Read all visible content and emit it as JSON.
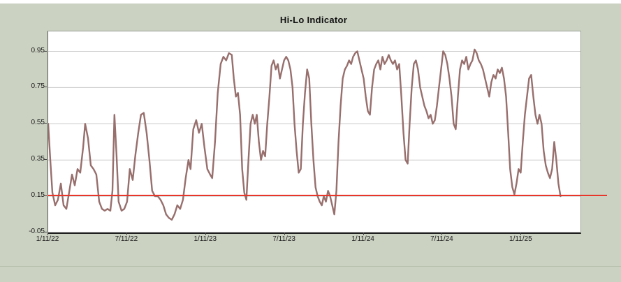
{
  "window": {
    "background_color": "#cbd2c2",
    "plot_background_color": "#ffffff"
  },
  "chart_data": {
    "type": "line",
    "title": "Hi-Lo Indicator",
    "xlabel": "",
    "ylabel": "",
    "legend": "none",
    "grid": "horizontal",
    "ylim": [
      -0.05,
      1.06
    ],
    "y_ticks": [
      0.95,
      0.75,
      0.55,
      0.35,
      0.15,
      -0.05
    ],
    "y_tick_labels": [
      "0.95",
      "0.75",
      "0.55",
      "0.35",
      "0.15",
      "-0.05"
    ],
    "x_tick_labels": [
      "1/11/22",
      "7/11/22",
      "1/11/23",
      "7/11/23",
      "1/11/24",
      "7/11/24",
      "1/11/25"
    ],
    "x_tick_months": [
      0,
      6,
      12,
      18,
      24,
      30,
      36
    ],
    "xlim_months": [
      0,
      40.5
    ],
    "colors": {
      "line": "#976f6d",
      "reference": "#e8362a",
      "grid": "#c9c9c9",
      "text": "#1a1a1a"
    },
    "reference_line": {
      "value": 0.15,
      "color": "#e8362a"
    },
    "series": [
      {
        "name": "Hi-Lo Indicator",
        "color": "#976f6d",
        "points": [
          [
            0,
            0.55
          ],
          [
            0.16,
            0.35
          ],
          [
            0.32,
            0.17
          ],
          [
            0.53,
            0.1
          ],
          [
            0.74,
            0.13
          ],
          [
            0.96,
            0.22
          ],
          [
            1.17,
            0.1
          ],
          [
            1.38,
            0.08
          ],
          [
            1.59,
            0.17
          ],
          [
            1.81,
            0.27
          ],
          [
            2.02,
            0.21
          ],
          [
            2.23,
            0.3
          ],
          [
            2.44,
            0.28
          ],
          [
            2.66,
            0.42
          ],
          [
            2.81,
            0.55
          ],
          [
            3.03,
            0.47
          ],
          [
            3.24,
            0.32
          ],
          [
            3.45,
            0.3
          ],
          [
            3.66,
            0.27
          ],
          [
            3.88,
            0.12
          ],
          [
            4.09,
            0.08
          ],
          [
            4.3,
            0.07
          ],
          [
            4.51,
            0.08
          ],
          [
            4.73,
            0.07
          ],
          [
            4.89,
            0.18
          ],
          [
            5.04,
            0.6
          ],
          [
            5.2,
            0.38
          ],
          [
            5.36,
            0.12
          ],
          [
            5.58,
            0.07
          ],
          [
            5.79,
            0.08
          ],
          [
            6.0,
            0.12
          ],
          [
            6.21,
            0.3
          ],
          [
            6.43,
            0.24
          ],
          [
            6.64,
            0.38
          ],
          [
            6.85,
            0.5
          ],
          [
            7.06,
            0.6
          ],
          [
            7.27,
            0.61
          ],
          [
            7.49,
            0.5
          ],
          [
            7.7,
            0.35
          ],
          [
            7.91,
            0.18
          ],
          [
            8.12,
            0.15
          ],
          [
            8.34,
            0.15
          ],
          [
            8.55,
            0.13
          ],
          [
            8.76,
            0.1
          ],
          [
            8.97,
            0.05
          ],
          [
            9.19,
            0.03
          ],
          [
            9.4,
            0.02
          ],
          [
            9.61,
            0.05
          ],
          [
            9.82,
            0.1
          ],
          [
            10.04,
            0.08
          ],
          [
            10.25,
            0.13
          ],
          [
            10.46,
            0.25
          ],
          [
            10.67,
            0.35
          ],
          [
            10.83,
            0.3
          ],
          [
            11.04,
            0.52
          ],
          [
            11.26,
            0.57
          ],
          [
            11.47,
            0.5
          ],
          [
            11.68,
            0.55
          ],
          [
            11.89,
            0.42
          ],
          [
            12.11,
            0.3
          ],
          [
            12.32,
            0.27
          ],
          [
            12.48,
            0.25
          ],
          [
            12.69,
            0.45
          ],
          [
            12.9,
            0.72
          ],
          [
            13.12,
            0.88
          ],
          [
            13.33,
            0.92
          ],
          [
            13.54,
            0.9
          ],
          [
            13.75,
            0.94
          ],
          [
            13.97,
            0.93
          ],
          [
            14.12,
            0.8
          ],
          [
            14.28,
            0.7
          ],
          [
            14.44,
            0.72
          ],
          [
            14.6,
            0.6
          ],
          [
            14.76,
            0.3
          ],
          [
            14.92,
            0.17
          ],
          [
            15.08,
            0.13
          ],
          [
            15.24,
            0.35
          ],
          [
            15.4,
            0.55
          ],
          [
            15.56,
            0.6
          ],
          [
            15.72,
            0.55
          ],
          [
            15.87,
            0.6
          ],
          [
            16.03,
            0.45
          ],
          [
            16.19,
            0.35
          ],
          [
            16.35,
            0.4
          ],
          [
            16.51,
            0.37
          ],
          [
            16.67,
            0.55
          ],
          [
            16.83,
            0.7
          ],
          [
            16.99,
            0.87
          ],
          [
            17.15,
            0.9
          ],
          [
            17.31,
            0.85
          ],
          [
            17.47,
            0.88
          ],
          [
            17.63,
            0.8
          ],
          [
            17.79,
            0.85
          ],
          [
            17.95,
            0.9
          ],
          [
            18.11,
            0.92
          ],
          [
            18.27,
            0.9
          ],
          [
            18.43,
            0.85
          ],
          [
            18.59,
            0.75
          ],
          [
            18.74,
            0.55
          ],
          [
            18.9,
            0.4
          ],
          [
            19.06,
            0.28
          ],
          [
            19.22,
            0.3
          ],
          [
            19.38,
            0.55
          ],
          [
            19.54,
            0.72
          ],
          [
            19.7,
            0.85
          ],
          [
            19.86,
            0.8
          ],
          [
            20.02,
            0.55
          ],
          [
            20.18,
            0.35
          ],
          [
            20.34,
            0.2
          ],
          [
            20.5,
            0.15
          ],
          [
            20.66,
            0.12
          ],
          [
            20.82,
            0.1
          ],
          [
            20.97,
            0.15
          ],
          [
            21.13,
            0.12
          ],
          [
            21.29,
            0.18
          ],
          [
            21.45,
            0.15
          ],
          [
            21.61,
            0.1
          ],
          [
            21.77,
            0.05
          ],
          [
            21.93,
            0.18
          ],
          [
            22.09,
            0.45
          ],
          [
            22.25,
            0.65
          ],
          [
            22.41,
            0.8
          ],
          [
            22.57,
            0.85
          ],
          [
            22.73,
            0.87
          ],
          [
            22.89,
            0.9
          ],
          [
            23.05,
            0.88
          ],
          [
            23.2,
            0.92
          ],
          [
            23.36,
            0.94
          ],
          [
            23.52,
            0.95
          ],
          [
            23.68,
            0.9
          ],
          [
            23.84,
            0.85
          ],
          [
            24.0,
            0.8
          ],
          [
            24.16,
            0.7
          ],
          [
            24.32,
            0.62
          ],
          [
            24.48,
            0.6
          ],
          [
            24.64,
            0.75
          ],
          [
            24.8,
            0.85
          ],
          [
            24.96,
            0.88
          ],
          [
            25.12,
            0.9
          ],
          [
            25.27,
            0.85
          ],
          [
            25.43,
            0.92
          ],
          [
            25.59,
            0.88
          ],
          [
            25.75,
            0.9
          ],
          [
            25.91,
            0.93
          ],
          [
            26.07,
            0.9
          ],
          [
            26.23,
            0.88
          ],
          [
            26.39,
            0.9
          ],
          [
            26.55,
            0.85
          ],
          [
            26.71,
            0.88
          ],
          [
            26.87,
            0.7
          ],
          [
            27.03,
            0.5
          ],
          [
            27.19,
            0.35
          ],
          [
            27.35,
            0.33
          ],
          [
            27.5,
            0.55
          ],
          [
            27.66,
            0.75
          ],
          [
            27.82,
            0.88
          ],
          [
            27.98,
            0.9
          ],
          [
            28.14,
            0.85
          ],
          [
            28.3,
            0.75
          ],
          [
            28.46,
            0.7
          ],
          [
            28.62,
            0.65
          ],
          [
            28.78,
            0.62
          ],
          [
            28.94,
            0.58
          ],
          [
            29.1,
            0.6
          ],
          [
            29.26,
            0.55
          ],
          [
            29.42,
            0.57
          ],
          [
            29.58,
            0.65
          ],
          [
            29.73,
            0.75
          ],
          [
            29.89,
            0.85
          ],
          [
            30.05,
            0.95
          ],
          [
            30.21,
            0.93
          ],
          [
            30.37,
            0.88
          ],
          [
            30.53,
            0.8
          ],
          [
            30.69,
            0.7
          ],
          [
            30.85,
            0.55
          ],
          [
            31.01,
            0.52
          ],
          [
            31.17,
            0.7
          ],
          [
            31.33,
            0.85
          ],
          [
            31.49,
            0.9
          ],
          [
            31.65,
            0.88
          ],
          [
            31.81,
            0.92
          ],
          [
            31.97,
            0.85
          ],
          [
            32.13,
            0.88
          ],
          [
            32.28,
            0.9
          ],
          [
            32.44,
            0.96
          ],
          [
            32.6,
            0.94
          ],
          [
            32.76,
            0.9
          ],
          [
            32.92,
            0.88
          ],
          [
            33.08,
            0.85
          ],
          [
            33.24,
            0.8
          ],
          [
            33.4,
            0.75
          ],
          [
            33.56,
            0.7
          ],
          [
            33.72,
            0.78
          ],
          [
            33.88,
            0.82
          ],
          [
            34.04,
            0.8
          ],
          [
            34.2,
            0.85
          ],
          [
            34.36,
            0.83
          ],
          [
            34.52,
            0.86
          ],
          [
            34.68,
            0.8
          ],
          [
            34.84,
            0.7
          ],
          [
            35.0,
            0.5
          ],
          [
            35.15,
            0.3
          ],
          [
            35.31,
            0.2
          ],
          [
            35.47,
            0.16
          ],
          [
            35.63,
            0.22
          ],
          [
            35.79,
            0.3
          ],
          [
            35.95,
            0.28
          ],
          [
            36.11,
            0.45
          ],
          [
            36.27,
            0.6
          ],
          [
            36.43,
            0.7
          ],
          [
            36.59,
            0.8
          ],
          [
            36.75,
            0.82
          ],
          [
            36.91,
            0.7
          ],
          [
            37.07,
            0.6
          ],
          [
            37.23,
            0.55
          ],
          [
            37.38,
            0.6
          ],
          [
            37.54,
            0.55
          ],
          [
            37.7,
            0.4
          ],
          [
            37.86,
            0.32
          ],
          [
            38.02,
            0.28
          ],
          [
            38.18,
            0.25
          ],
          [
            38.34,
            0.3
          ],
          [
            38.5,
            0.45
          ],
          [
            38.66,
            0.35
          ],
          [
            38.82,
            0.22
          ],
          [
            38.98,
            0.15
          ]
        ]
      }
    ]
  }
}
